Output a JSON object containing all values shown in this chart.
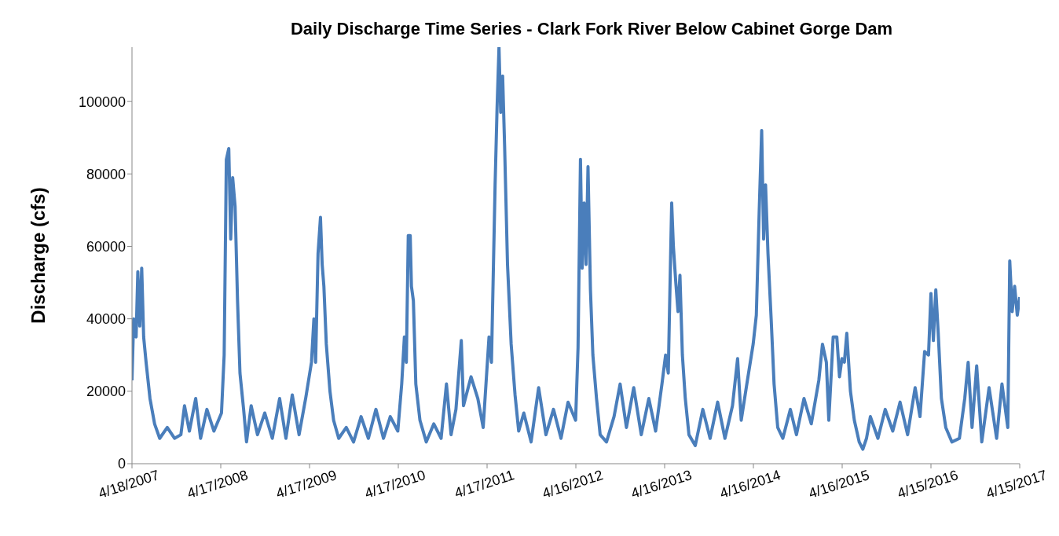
{
  "chart_data": {
    "type": "line",
    "title": "Daily Discharge Time Series - Clark Fork River Below Cabinet Gorge Dam",
    "ylabel": "Discharge (cfs)",
    "x": [
      "2007-04-18",
      "2007-04-25",
      "2007-05-05",
      "2007-05-12",
      "2007-05-20",
      "2007-05-28",
      "2007-06-05",
      "2007-06-15",
      "2007-07-01",
      "2007-07-20",
      "2007-08-10",
      "2007-09-10",
      "2007-10-10",
      "2007-11-05",
      "2007-11-20",
      "2007-12-10",
      "2008-01-05",
      "2008-01-25",
      "2008-02-20",
      "2008-03-20",
      "2008-04-20",
      "2008-05-01",
      "2008-05-10",
      "2008-05-20",
      "2008-05-28",
      "2008-06-05",
      "2008-06-15",
      "2008-06-25",
      "2008-07-05",
      "2008-07-20",
      "2008-08-01",
      "2008-08-20",
      "2008-09-15",
      "2008-10-15",
      "2008-11-15",
      "2008-12-15",
      "2009-01-10",
      "2009-02-05",
      "2009-03-05",
      "2009-04-01",
      "2009-04-25",
      "2009-05-05",
      "2009-05-12",
      "2009-05-22",
      "2009-06-01",
      "2009-06-08",
      "2009-06-15",
      "2009-06-25",
      "2009-07-10",
      "2009-07-25",
      "2009-08-15",
      "2009-09-15",
      "2009-10-15",
      "2009-11-15",
      "2009-12-15",
      "2010-01-15",
      "2010-02-15",
      "2010-03-15",
      "2010-04-15",
      "2010-05-01",
      "2010-05-12",
      "2010-05-20",
      "2010-05-28",
      "2010-06-05",
      "2010-06-10",
      "2010-06-18",
      "2010-06-28",
      "2010-07-15",
      "2010-08-10",
      "2010-09-10",
      "2010-10-10",
      "2010-11-01",
      "2010-11-20",
      "2010-12-10",
      "2011-01-01",
      "2011-01-10",
      "2011-02-10",
      "2011-03-10",
      "2011-04-01",
      "2011-04-25",
      "2011-05-05",
      "2011-05-20",
      "2011-05-28",
      "2011-06-05",
      "2011-06-12",
      "2011-06-20",
      "2011-06-28",
      "2011-07-10",
      "2011-07-25",
      "2011-08-10",
      "2011-08-25",
      "2011-09-15",
      "2011-10-15",
      "2011-11-15",
      "2011-12-15",
      "2012-01-15",
      "2012-02-15",
      "2012-03-15",
      "2012-04-15",
      "2012-04-25",
      "2012-05-05",
      "2012-05-12",
      "2012-05-20",
      "2012-05-28",
      "2012-06-05",
      "2012-06-15",
      "2012-06-25",
      "2012-07-10",
      "2012-07-25",
      "2012-08-20",
      "2012-09-20",
      "2012-10-15",
      "2012-11-10",
      "2012-12-10",
      "2013-01-10",
      "2013-02-10",
      "2013-03-10",
      "2013-04-05",
      "2013-04-20",
      "2013-05-01",
      "2013-05-15",
      "2013-05-22",
      "2013-06-01",
      "2013-06-10",
      "2013-06-18",
      "2013-06-28",
      "2013-07-10",
      "2013-07-25",
      "2013-08-20",
      "2013-09-20",
      "2013-10-20",
      "2013-11-20",
      "2013-12-20",
      "2014-01-20",
      "2014-02-10",
      "2014-02-25",
      "2014-03-20",
      "2014-04-15",
      "2014-04-28",
      "2014-05-10",
      "2014-05-20",
      "2014-05-28",
      "2014-06-05",
      "2014-06-15",
      "2014-06-28",
      "2014-07-10",
      "2014-07-25",
      "2014-08-15",
      "2014-09-15",
      "2014-10-10",
      "2014-11-10",
      "2014-12-10",
      "2015-01-10",
      "2015-01-25",
      "2015-02-10",
      "2015-02-20",
      "2015-03-10",
      "2015-03-25",
      "2015-04-05",
      "2015-04-15",
      "2015-04-25",
      "2015-05-05",
      "2015-05-20",
      "2015-06-05",
      "2015-06-25",
      "2015-07-10",
      "2015-07-25",
      "2015-08-10",
      "2015-09-10",
      "2015-10-10",
      "2015-11-10",
      "2015-12-10",
      "2016-01-10",
      "2016-02-10",
      "2016-03-01",
      "2016-03-20",
      "2016-04-05",
      "2016-04-15",
      "2016-04-25",
      "2016-05-05",
      "2016-05-15",
      "2016-05-28",
      "2016-06-15",
      "2016-07-10",
      "2016-08-10",
      "2016-09-01",
      "2016-09-15",
      "2016-10-01",
      "2016-10-20",
      "2016-11-10",
      "2016-12-10",
      "2017-01-10",
      "2017-02-01",
      "2017-02-25",
      "2017-03-05",
      "2017-03-15",
      "2017-03-25",
      "2017-04-05",
      "2017-04-15"
    ],
    "series": [
      {
        "color": "#4a7ebb",
        "values": [
          23000,
          40000,
          35000,
          53000,
          38000,
          54000,
          35000,
          28000,
          18000,
          11000,
          7000,
          10000,
          7000,
          8000,
          16000,
          9000,
          18000,
          7000,
          15000,
          9000,
          14000,
          30000,
          84000,
          87000,
          62000,
          79000,
          71000,
          45000,
          25000,
          15000,
          6000,
          16000,
          8000,
          14000,
          7000,
          18000,
          7000,
          19000,
          8000,
          18000,
          28000,
          40000,
          28000,
          58000,
          68000,
          55000,
          49000,
          33000,
          20000,
          12000,
          7000,
          10000,
          6000,
          13000,
          7000,
          15000,
          7000,
          13000,
          9000,
          22000,
          35000,
          28000,
          63000,
          63000,
          49000,
          45000,
          22000,
          12000,
          6000,
          11000,
          7000,
          22000,
          8000,
          15000,
          34000,
          16000,
          24000,
          18000,
          10000,
          35000,
          28000,
          77000,
          98000,
          115000,
          97000,
          107000,
          88000,
          55000,
          33000,
          19000,
          9000,
          14000,
          6000,
          21000,
          8000,
          15000,
          7000,
          17000,
          12000,
          32000,
          84000,
          54000,
          72000,
          55000,
          82000,
          48000,
          30000,
          18000,
          8000,
          6000,
          13000,
          22000,
          10000,
          21000,
          8000,
          18000,
          9000,
          22000,
          30000,
          25000,
          72000,
          60000,
          50000,
          42000,
          52000,
          30000,
          18000,
          8000,
          5000,
          15000,
          7000,
          17000,
          7000,
          16000,
          29000,
          12000,
          22000,
          33000,
          41000,
          70000,
          92000,
          62000,
          77000,
          58000,
          40000,
          22000,
          10000,
          7000,
          15000,
          8000,
          18000,
          11000,
          23000,
          33000,
          28000,
          12000,
          35000,
          35000,
          24000,
          29000,
          28000,
          36000,
          20000,
          12000,
          6000,
          4000,
          7000,
          13000,
          7000,
          15000,
          9000,
          17000,
          8000,
          21000,
          13000,
          31000,
          30000,
          47000,
          34000,
          48000,
          36000,
          18000,
          10000,
          6000,
          7000,
          18000,
          28000,
          10000,
          27000,
          6000,
          21000,
          7000,
          22000,
          10000,
          56000,
          42000,
          49000,
          41000,
          46000
        ]
      }
    ],
    "xlim": [
      "2007-04-18",
      "2017-04-15"
    ],
    "xticks": [
      {
        "value": "2007-04-18",
        "label": "4/18/2007"
      },
      {
        "value": "2008-04-17",
        "label": "4/17/2008"
      },
      {
        "value": "2009-04-17",
        "label": "4/17/2009"
      },
      {
        "value": "2010-04-17",
        "label": "4/17/2010"
      },
      {
        "value": "2011-04-17",
        "label": "4/17/2011"
      },
      {
        "value": "2012-04-16",
        "label": "4/16/2012"
      },
      {
        "value": "2013-04-16",
        "label": "4/16/2013"
      },
      {
        "value": "2014-04-16",
        "label": "4/16/2014"
      },
      {
        "value": "2015-04-16",
        "label": "4/16/2015"
      },
      {
        "value": "2016-04-15",
        "label": "4/15/2016"
      },
      {
        "value": "2017-04-15",
        "label": "4/15/2017"
      }
    ],
    "ylim": [
      0,
      115000
    ],
    "yticks": [
      0,
      20000,
      40000,
      60000,
      80000,
      100000
    ],
    "grid": false,
    "legend": false,
    "marker": "none",
    "line_style": "solid"
  }
}
